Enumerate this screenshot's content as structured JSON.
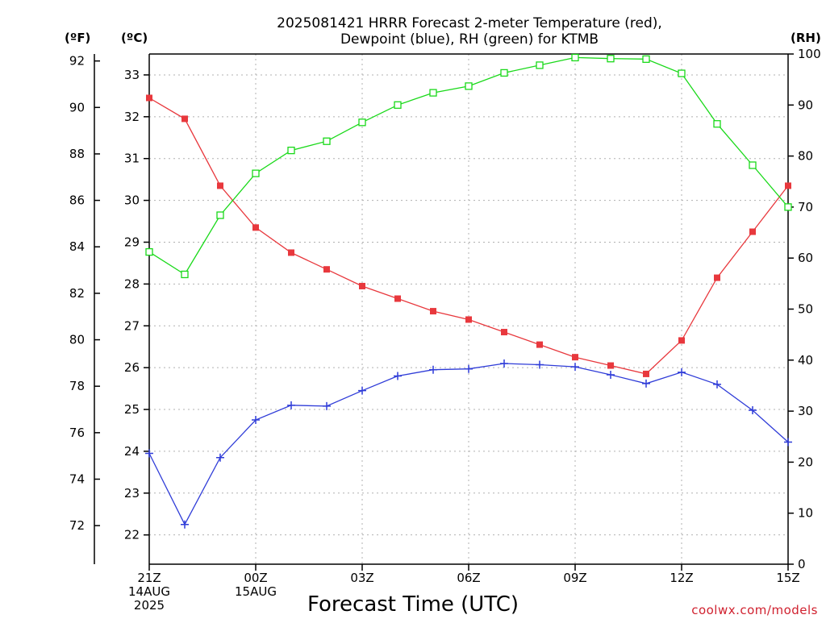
{
  "chart_data": {
    "type": "line",
    "title_lines": [
      "2025081421 HRRR Forecast 2-meter Temperature (red),",
      "Dewpoint (blue), RH (green) for KTMB"
    ],
    "xlabel": "Forecast Time (UTC)",
    "credit": "coolwx.com/models",
    "axis_units": {
      "fahrenheit": "(ºF)",
      "celsius": "(ºC)",
      "rh": "(RH)"
    },
    "x_ticks": [
      {
        "hour": 0,
        "lines": [
          "21Z",
          "14AUG",
          "2025"
        ]
      },
      {
        "hour": 3,
        "lines": [
          "00Z",
          "15AUG"
        ]
      },
      {
        "hour": 6,
        "lines": [
          "03Z"
        ]
      },
      {
        "hour": 9,
        "lines": [
          "06Z"
        ]
      },
      {
        "hour": 12,
        "lines": [
          "09Z"
        ]
      },
      {
        "hour": 15,
        "lines": [
          "12Z"
        ]
      },
      {
        "hour": 18,
        "lines": [
          "15Z"
        ]
      }
    ],
    "x_range_hours": [
      0,
      18
    ],
    "celsius_range": [
      21.3,
      33.5
    ],
    "celsius_ticks": [
      22,
      23,
      24,
      25,
      26,
      27,
      28,
      29,
      30,
      31,
      32,
      33
    ],
    "fahrenheit_ticks": [
      72,
      74,
      76,
      78,
      80,
      82,
      84,
      86,
      88,
      90,
      92
    ],
    "rh_range": [
      0,
      100
    ],
    "rh_ticks": [
      0,
      10,
      20,
      30,
      40,
      50,
      60,
      70,
      80,
      90,
      100
    ],
    "grid": true,
    "series": [
      {
        "name": "2-meter Temperature",
        "axis": "celsius",
        "color": "#e8383d",
        "marker": "filled-square",
        "x": [
          0,
          1,
          2,
          3,
          4,
          5,
          6,
          7,
          8,
          9,
          10,
          11,
          12,
          13,
          14,
          15,
          16,
          17,
          18
        ],
        "values": [
          32.45,
          31.95,
          30.35,
          29.35,
          28.75,
          28.35,
          27.95,
          27.65,
          27.35,
          27.15,
          26.85,
          26.55,
          26.25,
          26.05,
          25.85,
          26.65,
          28.15,
          29.25,
          30.35
        ]
      },
      {
        "name": "Dewpoint",
        "axis": "celsius",
        "color": "#2f3cd8",
        "marker": "plus",
        "x": [
          0,
          1,
          2,
          3,
          4,
          5,
          6,
          7,
          8,
          9,
          10,
          11,
          12,
          13,
          14,
          15,
          16,
          17,
          18
        ],
        "values": [
          23.95,
          22.25,
          23.85,
          24.75,
          25.1,
          25.08,
          25.45,
          25.8,
          25.95,
          25.97,
          26.1,
          26.07,
          26.02,
          25.83,
          25.62,
          25.89,
          25.6,
          24.98,
          24.22
        ]
      },
      {
        "name": "RH",
        "axis": "rh",
        "color": "#19d919",
        "marker": "open-square",
        "x": [
          0,
          1,
          2,
          3,
          4,
          5,
          6,
          7,
          8,
          9,
          10,
          11,
          12,
          13,
          14,
          15,
          16,
          17,
          18
        ],
        "values": [
          61.2,
          56.8,
          68.4,
          76.6,
          81.1,
          82.9,
          86.6,
          90.0,
          92.4,
          93.7,
          96.3,
          97.8,
          99.3,
          99.1,
          99.0,
          96.2,
          86.3,
          78.2,
          70.0
        ]
      }
    ]
  }
}
